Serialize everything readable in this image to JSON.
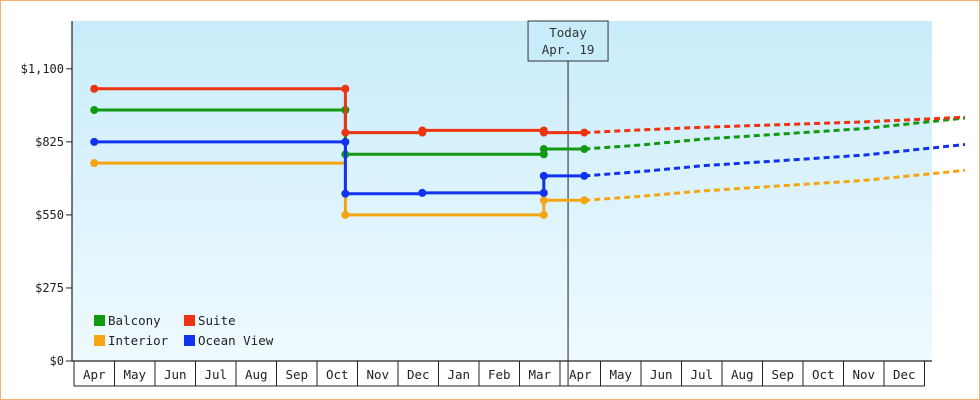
{
  "chart_data": {
    "type": "line",
    "subtype": "step-with-forecast",
    "y_axis": {
      "ticks": [
        0,
        275,
        550,
        825,
        1100
      ],
      "tick_labels": [
        "$0",
        "$275",
        "$550",
        "$825",
        "$1,100"
      ],
      "range": [
        0,
        1280
      ]
    },
    "x_axis": {
      "tick_labels": [
        "Apr",
        "May",
        "Jun",
        "Jul",
        "Aug",
        "Sep",
        "Oct",
        "Nov",
        "Dec",
        "Jan",
        "Feb",
        "Mar",
        "Apr",
        "May",
        "Jun",
        "Jul",
        "Aug",
        "Sep",
        "Oct",
        "Nov",
        "Dec"
      ]
    },
    "today_marker": {
      "line1": "Today",
      "line2": "Apr. 19",
      "x": 12.1
    },
    "grid": false,
    "legend_position": "bottom-left",
    "series": [
      {
        "name": "Balcony",
        "color": "#119911",
        "history": [
          [
            0,
            945
          ],
          [
            6.2,
            945
          ],
          [
            6.2,
            778
          ],
          [
            11.1,
            778
          ],
          [
            11.1,
            798
          ],
          [
            12.1,
            798
          ]
        ],
        "markers": [
          [
            0,
            945
          ],
          [
            6.2,
            945
          ],
          [
            6.2,
            778
          ],
          [
            11.1,
            778
          ],
          [
            11.1,
            798
          ],
          [
            12.1,
            798
          ]
        ],
        "forecast": [
          [
            12.1,
            798
          ],
          [
            13.5,
            813
          ],
          [
            15,
            835
          ],
          [
            17,
            855
          ],
          [
            19,
            875
          ],
          [
            21.5,
            915
          ]
        ]
      },
      {
        "name": "Suite",
        "color": "#ee3311",
        "history": [
          [
            0,
            1025
          ],
          [
            6.2,
            1025
          ],
          [
            6.2,
            860
          ],
          [
            8.1,
            860
          ],
          [
            8.1,
            868
          ],
          [
            11.1,
            868
          ],
          [
            11.1,
            860
          ],
          [
            12.1,
            860
          ]
        ],
        "markers": [
          [
            0,
            1025
          ],
          [
            6.2,
            1025
          ],
          [
            6.2,
            860
          ],
          [
            8.1,
            860
          ],
          [
            8.1,
            868
          ],
          [
            11.1,
            868
          ],
          [
            11.1,
            860
          ],
          [
            12.1,
            860
          ]
        ],
        "forecast": [
          [
            12.1,
            860
          ],
          [
            13.5,
            870
          ],
          [
            15,
            880
          ],
          [
            17,
            890
          ],
          [
            19,
            900
          ],
          [
            21.5,
            918
          ]
        ]
      },
      {
        "name": "Interior",
        "color": "#f5a511",
        "history": [
          [
            0,
            745
          ],
          [
            6.2,
            745
          ],
          [
            6.2,
            550
          ],
          [
            11.1,
            550
          ],
          [
            11.1,
            605
          ],
          [
            12.1,
            605
          ]
        ],
        "markers": [
          [
            0,
            745
          ],
          [
            6.2,
            550
          ],
          [
            11.1,
            550
          ],
          [
            11.1,
            605
          ],
          [
            12.1,
            605
          ]
        ],
        "forecast": [
          [
            12.1,
            605
          ],
          [
            13.5,
            620
          ],
          [
            15,
            640
          ],
          [
            17,
            660
          ],
          [
            19,
            680
          ],
          [
            21.5,
            718
          ]
        ]
      },
      {
        "name": "Ocean View",
        "color": "#1133ee",
        "history": [
          [
            0,
            825
          ],
          [
            6.2,
            825
          ],
          [
            6.2,
            630
          ],
          [
            8.1,
            630
          ],
          [
            8.1,
            633
          ],
          [
            11.1,
            633
          ],
          [
            11.1,
            697
          ],
          [
            12.1,
            697
          ]
        ],
        "markers": [
          [
            0,
            825
          ],
          [
            6.2,
            825
          ],
          [
            6.2,
            630
          ],
          [
            8.1,
            633
          ],
          [
            11.1,
            633
          ],
          [
            11.1,
            697
          ],
          [
            12.1,
            697
          ]
        ],
        "forecast": [
          [
            12.1,
            697
          ],
          [
            13.5,
            713
          ],
          [
            15,
            735
          ],
          [
            17,
            755
          ],
          [
            19,
            775
          ],
          [
            21.5,
            815
          ]
        ]
      }
    ]
  }
}
